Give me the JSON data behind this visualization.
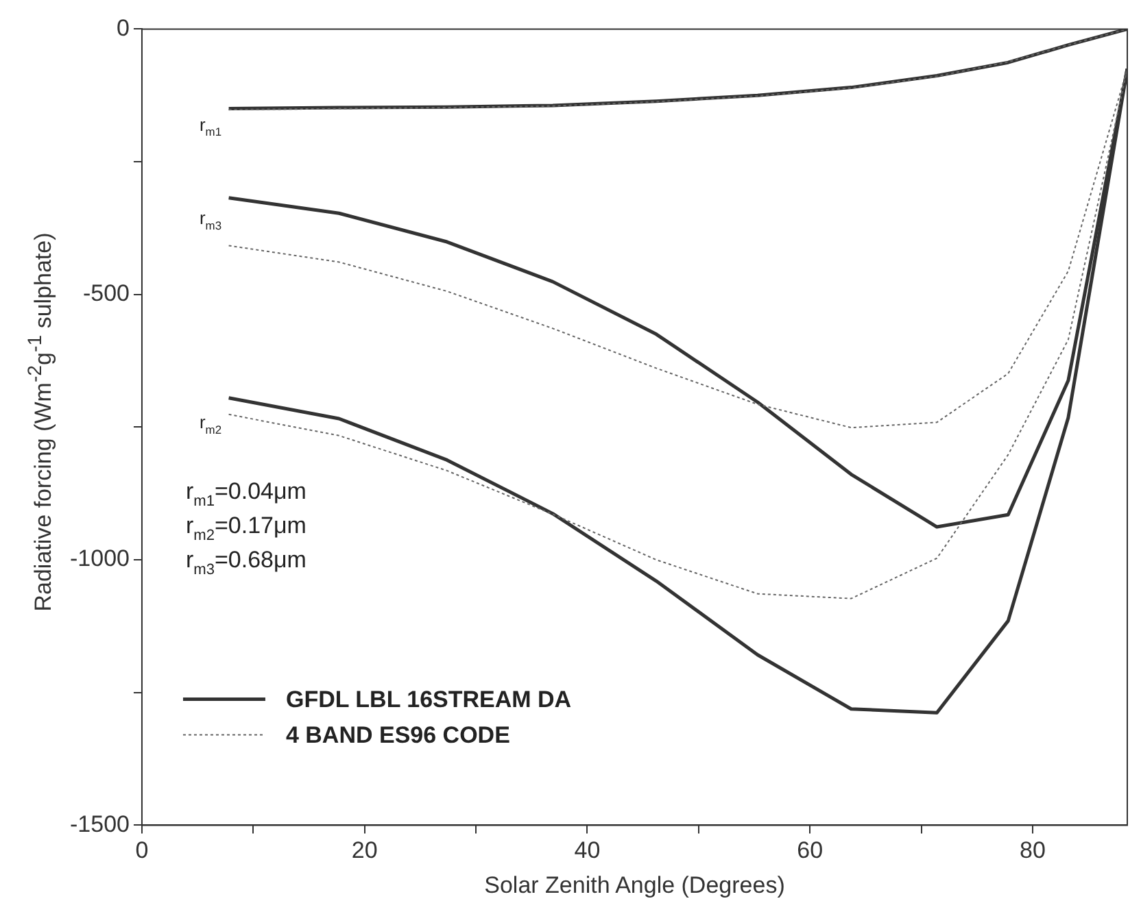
{
  "chart_data": {
    "type": "line",
    "xlabel": "Solar Zenith Angle (Degrees)",
    "ylabel": "Radiative forcing (Wm$^{-2}$g$^{-1}$ sulphate)",
    "x": [
      7.8,
      17.7,
      27.4,
      36.9,
      46.2,
      55.3,
      63.7,
      71.4,
      77.8,
      83.2,
      88.5
    ],
    "xlim": [
      0,
      88.5
    ],
    "xticks": [
      0,
      {
        "value": 10,
        "label": null
      },
      20,
      {
        "value": 30,
        "label": null
      },
      40,
      {
        "value": 50,
        "label": null
      },
      60,
      {
        "value": 70,
        "label": null
      },
      80
    ],
    "ylim": [
      -1500,
      0
    ],
    "yticks": [
      -1500,
      {
        "value": -1250,
        "label": null
      },
      -1000,
      {
        "value": -750,
        "label": null
      },
      -500,
      {
        "value": -250,
        "label": null
      },
      0
    ],
    "grid": false,
    "legend": "bottom left",
    "marker": "none",
    "series": [
      {
        "name": "GFDL LBL 16STREAM DA",
        "color": "#333333",
        "line_style": "solid",
        "values": [
          -150,
          -148,
          -147,
          -144,
          -136,
          -125,
          -110,
          -88,
          -63,
          -30,
          0
        ]
      },
      {
        "name": "4 BAND ES96 CODE",
        "color": "#666666",
        "line_style": "dotted",
        "values": [
          -152,
          -150,
          -148,
          -145,
          -137,
          -126,
          -111,
          -89,
          -62,
          -30,
          0
        ]
      },
      {
        "color": "#333333",
        "line_style": "solid",
        "values": [
          -318,
          -347,
          -401,
          -476,
          -575,
          -703,
          -839,
          -938,
          -915,
          -662,
          -75
        ]
      },
      {
        "color": "#666666",
        "line_style": "dotted",
        "values": [
          -408,
          -439,
          -494,
          -564,
          -639,
          -707,
          -751,
          -741,
          -649,
          -456,
          -75
        ]
      },
      {
        "color": "#333333",
        "line_style": "solid",
        "values": [
          -695,
          -734,
          -812,
          -913,
          -1040,
          -1179,
          -1281,
          -1288,
          -1115,
          -732,
          -75
        ]
      },
      {
        "color": "#666666",
        "line_style": "dotted",
        "values": [
          -726,
          -766,
          -832,
          -914,
          -1000,
          -1064,
          -1073,
          -997,
          -802,
          -585,
          -75
        ]
      }
    ],
    "annotations": [
      "r$_{m1}$",
      "r$_{m3}$",
      "r$_{m2}$",
      "r$_{m1}$=0.04μm",
      "r$_{m2}$=0.17μm",
      "r$_{m3}$=0.68μm"
    ]
  }
}
